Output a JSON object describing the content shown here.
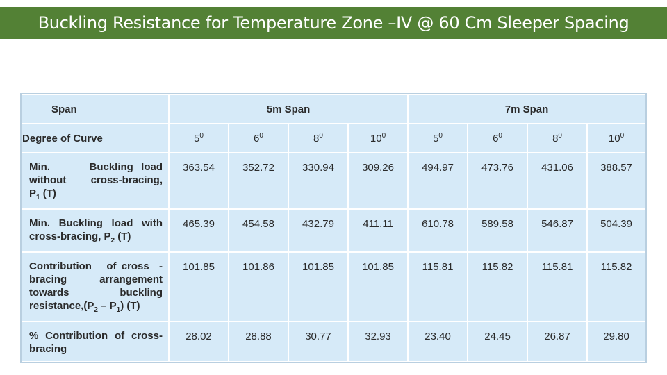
{
  "title": "Buckling Resistance for Temperature Zone –IV @ 60 Cm Sleeper Spacing",
  "table": {
    "span_label": "Span",
    "span_groups": [
      "5m Span",
      "7m Span"
    ],
    "degree_label": "Degree of Curve",
    "degrees": [
      "5",
      "6",
      "8",
      "10",
      "5",
      "6",
      "8",
      "10"
    ],
    "degree_sup": "0",
    "rows": [
      {
        "label_html": "Min. &nbsp;&nbsp;&nbsp;&nbsp;Buckling load without &nbsp;&nbsp;&nbsp;cross-bracing, P<sub>1</sub> (T)",
        "label": "Min. Buckling load without cross-bracing, P1 (T)",
        "values": [
          "363.54",
          "352.72",
          "330.94",
          "309.26",
          "494.97",
          "473.76",
          "431.06",
          "388.57"
        ]
      },
      {
        "label": "Min. Buckling load with cross-bracing, P2 (T)",
        "values": [
          "465.39",
          "454.58",
          "432.79",
          "411.11",
          "610.78",
          "589.58",
          "546.87",
          "504.39"
        ]
      },
      {
        "label": "Contribution of cross - bracing arrangement towards buckling resistance,(P2 – P1) (T)",
        "values": [
          "101.85",
          "101.86",
          "101.85",
          "101.85",
          "115.81",
          "115.82",
          "115.81",
          "115.82"
        ]
      },
      {
        "label": "% Contribution of cross-bracing",
        "values": [
          "28.02",
          "28.88",
          "30.77",
          "32.93",
          "23.40",
          "24.45",
          "26.87",
          "29.80"
        ]
      }
    ]
  },
  "colors": {
    "title_bg": "#538135",
    "cell_bg": "#d6eaf8"
  }
}
